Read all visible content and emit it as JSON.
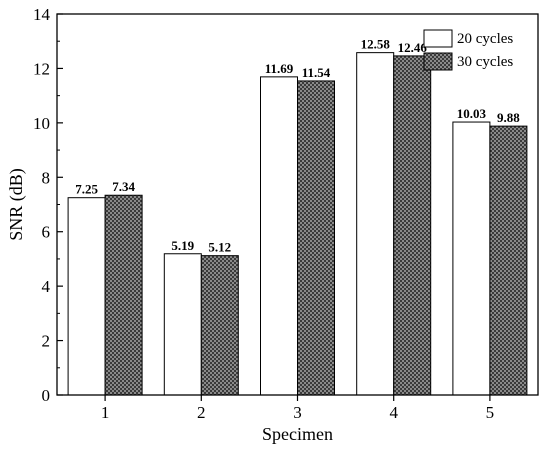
{
  "chart_data": {
    "type": "bar",
    "categories": [
      "1",
      "2",
      "3",
      "4",
      "5"
    ],
    "series": [
      {
        "name": "20 cycles",
        "values": [
          7.25,
          5.19,
          11.69,
          12.58,
          10.03
        ],
        "labels": [
          "7.25",
          "5.19",
          "11.69",
          "12.58",
          "10.03"
        ],
        "color": "#ffffff"
      },
      {
        "name": "30 cycles",
        "values": [
          7.34,
          5.12,
          11.54,
          12.46,
          9.88
        ],
        "labels": [
          "7.34",
          "5.12",
          "11.54",
          "12.46",
          "9.88"
        ],
        "color": "#6f6f6f"
      }
    ],
    "xlabel": "Specimen",
    "ylabel": "SNR (dB)",
    "ylim": [
      0,
      14
    ],
    "yticks": [
      "0",
      "2",
      "4",
      "6",
      "8",
      "10",
      "12",
      "14"
    ],
    "legend_position": "top-right",
    "grid": false
  }
}
